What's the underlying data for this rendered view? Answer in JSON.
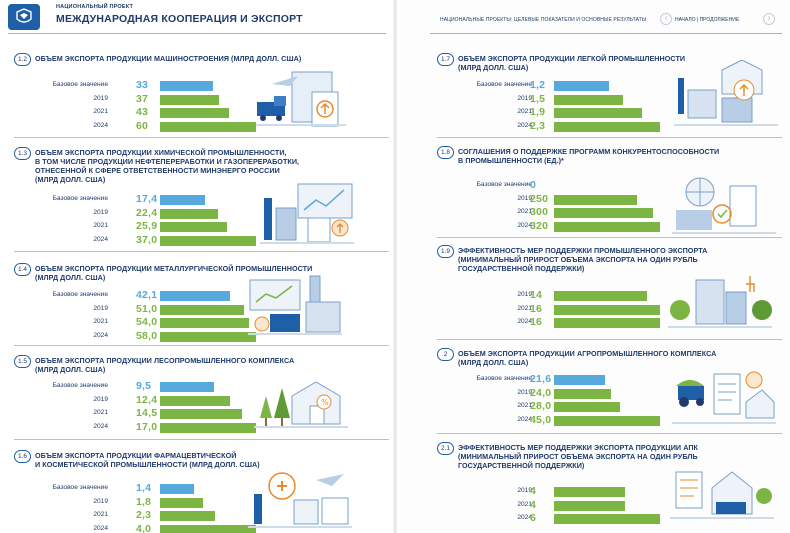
{
  "header": {
    "project_label": "НАЦИОНАЛЬНЫЙ ПРОЕКТ",
    "title": "МЕЖДУНАРОДНАЯ КООПЕРАЦИЯ И ЭКСПОРТ",
    "right_caption": "НАЦИОНАЛЬНЫЕ ПРОЕКТЫ: ЦЕЛЕВЫЕ ПОКАЗАТЕЛИ И ОСНОВНЫЕ РЕЗУЛЬТАТЫ",
    "nav_text": "НАЧАЛО | ПРОДОЛЖЕНИЕ",
    "nav_prev": "‹",
    "nav_next": "›"
  },
  "colors": {
    "base": "#55a9dd",
    "target": "#7db545",
    "text": "#1f3a6b"
  },
  "sections": [
    {
      "id": "s12",
      "num": "1.2",
      "title": [
        "ОБЪЕМ ЭКСПОРТА ПРОДУКЦИИ МАШИНОСТРОЕНИЯ (МЛРД ДОЛЛ. США)"
      ],
      "rows": [
        {
          "label": "Базовое значение",
          "value": "33",
          "num": 33
        },
        {
          "label": "2019",
          "value": "37",
          "num": 37
        },
        {
          "label": "2021",
          "value": "43",
          "num": 43
        },
        {
          "label": "2024",
          "value": "60",
          "num": 60
        }
      ]
    },
    {
      "id": "s13",
      "num": "1.3",
      "title": [
        "ОБЪЕМ ЭКСПОРТА ПРОДУКЦИИ ХИМИЧЕСКОЙ ПРОМЫШЛЕННОСТИ,",
        "В ТОМ ЧИСЛЕ ПРОДУКЦИИ НЕФТЕПЕРЕРАБОТКИ И ГАЗОПЕРЕРАБОТКИ,",
        "ОТНЕСЕННОЙ К СФЕРЕ ОТВЕТСТВЕННОСТИ МИНЭНЕРГО РОССИИ",
        "(МЛРД ДОЛЛ. США)"
      ],
      "rows": [
        {
          "label": "Базовое значение",
          "value": "17,4",
          "num": 17.4
        },
        {
          "label": "2019",
          "value": "22,4",
          "num": 22.4
        },
        {
          "label": "2021",
          "value": "25,9",
          "num": 25.9
        },
        {
          "label": "2024",
          "value": "37,0",
          "num": 37.0
        }
      ]
    },
    {
      "id": "s14",
      "num": "1.4",
      "title": [
        "ОБЪЕМ ЭКСПОРТА ПРОДУКЦИИ МЕТАЛЛУРГИЧЕСКОЙ ПРОМЫШЛЕННОСТИ",
        "(МЛРД ДОЛЛ. США)"
      ],
      "rows": [
        {
          "label": "Базовое значение",
          "value": "42,1",
          "num": 42.1
        },
        {
          "label": "2019",
          "value": "51,0",
          "num": 51.0
        },
        {
          "label": "2021",
          "value": "54,0",
          "num": 54.0
        },
        {
          "label": "2024",
          "value": "58,0",
          "num": 58.0
        }
      ]
    },
    {
      "id": "s15",
      "num": "1.5",
      "title": [
        "ОБЪЕМ ЭКСПОРТА ПРОДУКЦИИ ЛЕСОПРОМЫШЛЕННОГО КОМПЛЕКСА",
        "(МЛРД ДОЛЛ. США)"
      ],
      "rows": [
        {
          "label": "Базовое значение",
          "value": "9,5",
          "num": 9.5
        },
        {
          "label": "2019",
          "value": "12,4",
          "num": 12.4
        },
        {
          "label": "2021",
          "value": "14,5",
          "num": 14.5
        },
        {
          "label": "2024",
          "value": "17,0",
          "num": 17.0
        }
      ]
    },
    {
      "id": "s16",
      "num": "1.6",
      "title": [
        "ОБЪЕМ ЭКСПОРТА ПРОДУКЦИИ ФАРМАЦЕВТИЧЕСКОЙ",
        "И КОСМЕТИЧЕСКОЙ ПРОМЫШЛЕННОСТИ (МЛРД ДОЛЛ. США)"
      ],
      "rows": [
        {
          "label": "Базовое значение",
          "value": "1,4",
          "num": 1.4
        },
        {
          "label": "2019",
          "value": "1,8",
          "num": 1.8
        },
        {
          "label": "2021",
          "value": "2,3",
          "num": 2.3
        },
        {
          "label": "2024",
          "value": "4,0",
          "num": 4.0
        }
      ]
    },
    {
      "id": "s17",
      "num": "1.7",
      "title": [
        "ОБЪЕМ ЭКСПОРТА ПРОДУКЦИИ ЛЕГКОЙ ПРОМЫШЛЕННОСТИ",
        "(МЛРД ДОЛЛ. США)"
      ],
      "rows": [
        {
          "label": "Базовое значение",
          "value": "1,2",
          "num": 1.2
        },
        {
          "label": "2019",
          "value": "1,5",
          "num": 1.5
        },
        {
          "label": "2021",
          "value": "1,9",
          "num": 1.9
        },
        {
          "label": "2024",
          "value": "2,3",
          "num": 2.3
        }
      ]
    },
    {
      "id": "s18",
      "num": "1.8",
      "title": [
        "СОГЛАШЕНИЯ О ПОДДЕРЖКЕ ПРОГРАММ КОНКУРЕНТОСПОСОБНОСТИ",
        "В ПРОМЫШЛЕННОСТИ (ЕД.)*"
      ],
      "rows": [
        {
          "label": "Базовое значение",
          "value": "0",
          "num": 0
        },
        {
          "label": "2019",
          "value": "250",
          "num": 250
        },
        {
          "label": "2021",
          "value": "300",
          "num": 300
        },
        {
          "label": "2024",
          "value": "320",
          "num": 320
        }
      ]
    },
    {
      "id": "s19",
      "num": "1.9",
      "title": [
        "ЭФФЕКТИВНОСТЬ МЕР ПОДДЕРЖКИ ПРОМЫШЛЕННОГО ЭКСПОРТА",
        "(МИНИМАЛЬНЫЙ ПРИРОСТ ОБЪЕМА ЭКСПОРТА НА ОДИН РУБЛЬ",
        "ГОСУДАРСТВЕННОЙ ПОДДЕРЖКИ)"
      ],
      "rows": [
        {
          "label": "2019",
          "value": "14",
          "num": 14
        },
        {
          "label": "2021",
          "value": "16",
          "num": 16
        },
        {
          "label": "2024",
          "value": "16",
          "num": 16
        }
      ]
    },
    {
      "id": "s2",
      "num": "2",
      "title": [
        "ОБЪЕМ ЭКСПОРТА ПРОДУКЦИИ АГРОПРОМЫШЛЕННОГО КОМПЛЕКСА",
        "(МЛРД ДОЛЛ. США)"
      ],
      "rows": [
        {
          "label": "Базовое значение",
          "value": "21,6",
          "num": 21.6
        },
        {
          "label": "2019",
          "value": "24,0",
          "num": 24.0
        },
        {
          "label": "2021",
          "value": "28,0",
          "num": 28.0
        },
        {
          "label": "2024",
          "value": "45,0",
          "num": 45.0
        }
      ]
    },
    {
      "id": "s21",
      "num": "2.1",
      "title": [
        "ЭФФЕКТИВНОСТЬ МЕР ПОДДЕРЖКИ ЭКСПОРТА ПРОДУКЦИИ АПК",
        "(МИНИМАЛЬНЫЙ ПРИРОСТ ОБЪЕМА ЭКСПОРТА НА ОДИН РУБЛЬ",
        "ГОСУДАРСТВЕННОЙ ПОДДЕРЖКИ)"
      ],
      "rows": [
        {
          "label": "2019",
          "value": "4",
          "num": 4
        },
        {
          "label": "2021",
          "value": "4",
          "num": 4
        },
        {
          "label": "2024",
          "value": "6",
          "num": 6
        }
      ]
    }
  ]
}
